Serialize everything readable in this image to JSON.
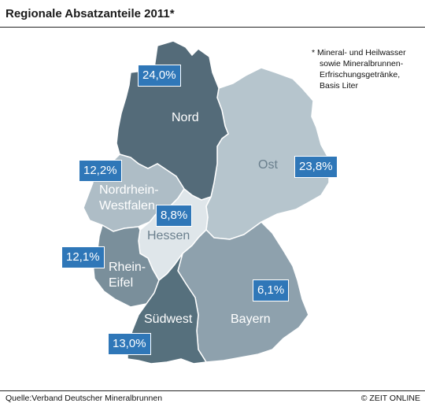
{
  "title": "Regionale Absatzanteile 2011*",
  "footnote": {
    "line1": "* Mineral- und Heilwasser",
    "line2": "sowie Mineralbrunnen-",
    "line3": "Erfrischungsgetränke,",
    "line4": "Basis Liter"
  },
  "source": "Quelle:Verband Deutscher Mineralbrunnen",
  "brand": "© ZEIT ONLINE",
  "regions": {
    "nord": {
      "name": "Nord",
      "share": "24,0%"
    },
    "ost": {
      "name": "Ost",
      "share": "23,8%"
    },
    "nrw": {
      "name_line1": "Nordrhein-",
      "name_line2": "Westfalen",
      "share": "12,2%"
    },
    "hessen": {
      "name": "Hessen",
      "share": "8,8%"
    },
    "rheineifel": {
      "name_line1": "Rhein-",
      "name_line2": "Eifel",
      "share": "12,1%"
    },
    "suedwest": {
      "name": "Südwest",
      "share": "13,0%"
    },
    "bayern": {
      "name": "Bayern",
      "share": "6,1%"
    }
  },
  "colors": {
    "nord": "#546b79",
    "ost": "#b6c5cd",
    "nrw": "#aebdc6",
    "hessen": "#dfe6ea",
    "rheineifel": "#7a8f9b",
    "suedwest": "#56707d",
    "bayern": "#8ea1ad",
    "badge": "#2f77b8"
  }
}
